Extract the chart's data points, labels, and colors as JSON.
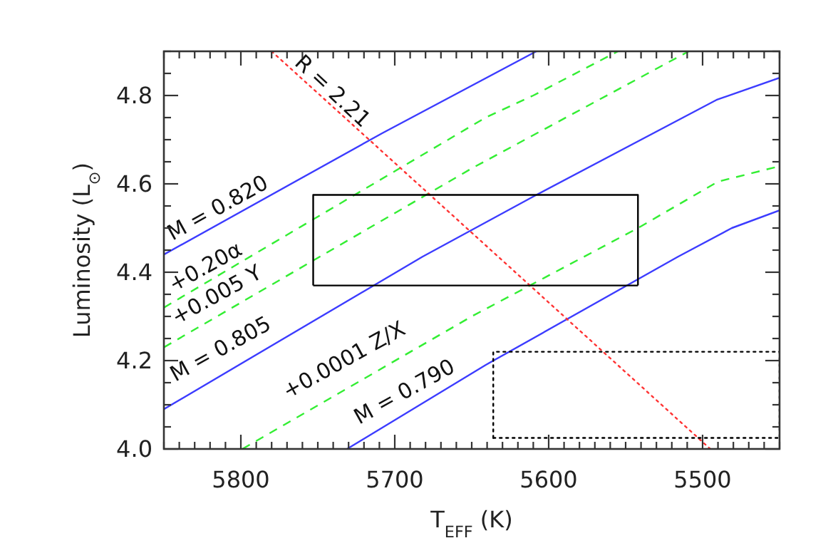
{
  "chart_data": {
    "type": "line",
    "xlabel": "T$_{EFF}$ (K)",
    "ylabel": "Luminosity (L$_{⊙}$)",
    "xlim": [
      5850,
      5450
    ],
    "ylim": [
      4.0,
      4.9
    ],
    "xticks": [
      {
        "value": 5850,
        "label": null
      },
      {
        "value": 5840,
        "label": null
      },
      {
        "value": 5830,
        "label": null
      },
      {
        "value": 5820,
        "label": null
      },
      {
        "value": 5810,
        "label": null
      },
      5800,
      {
        "value": 5790,
        "label": null
      },
      {
        "value": 5780,
        "label": null
      },
      {
        "value": 5770,
        "label": null
      },
      {
        "value": 5760,
        "label": null
      },
      {
        "value": 5750,
        "label": null
      },
      {
        "value": 5740,
        "label": null
      },
      {
        "value": 5730,
        "label": null
      },
      {
        "value": 5720,
        "label": null
      },
      {
        "value": 5710,
        "label": null
      },
      5700,
      {
        "value": 5690,
        "label": null
      },
      {
        "value": 5680,
        "label": null
      },
      {
        "value": 5670,
        "label": null
      },
      {
        "value": 5660,
        "label": null
      },
      {
        "value": 5650,
        "label": null
      },
      {
        "value": 5640,
        "label": null
      },
      {
        "value": 5630,
        "label": null
      },
      {
        "value": 5620,
        "label": null
      },
      {
        "value": 5610,
        "label": null
      },
      5600,
      {
        "value": 5590,
        "label": null
      },
      {
        "value": 5580,
        "label": null
      },
      {
        "value": 5570,
        "label": null
      },
      {
        "value": 5560,
        "label": null
      },
      {
        "value": 5550,
        "label": null
      },
      {
        "value": 5540,
        "label": null
      },
      {
        "value": 5530,
        "label": null
      },
      {
        "value": 5520,
        "label": null
      },
      {
        "value": 5510,
        "label": null
      },
      5500,
      {
        "value": 5490,
        "label": null
      },
      {
        "value": 5480,
        "label": null
      },
      {
        "value": 5470,
        "label": null
      },
      {
        "value": 5460,
        "label": null
      },
      {
        "value": 5450,
        "label": null
      }
    ],
    "yticks": [
      {
        "value": 4.0,
        "label": "4.0"
      },
      {
        "value": 4.05,
        "label": null
      },
      {
        "value": 4.1,
        "label": null
      },
      {
        "value": 4.15,
        "label": null
      },
      {
        "value": 4.2,
        "label": "4.2"
      },
      {
        "value": 4.25,
        "label": null
      },
      {
        "value": 4.3,
        "label": null
      },
      {
        "value": 4.35,
        "label": null
      },
      {
        "value": 4.4,
        "label": "4.4"
      },
      {
        "value": 4.45,
        "label": null
      },
      {
        "value": 4.5,
        "label": null
      },
      {
        "value": 4.55,
        "label": null
      },
      {
        "value": 4.6,
        "label": "4.6"
      },
      {
        "value": 4.65,
        "label": null
      },
      {
        "value": 4.7,
        "label": null
      },
      {
        "value": 4.75,
        "label": null
      },
      {
        "value": 4.8,
        "label": "4.8"
      },
      {
        "value": 4.85,
        "label": null
      },
      {
        "value": 4.9,
        "label": null
      }
    ],
    "grid": false,
    "marker": "none",
    "series": [
      {
        "name": "M = 0.820",
        "color": "#3c3cff",
        "line_style": "solid",
        "x": [
          5850,
          5708,
          5608
        ],
        "values": [
          4.44,
          4.715,
          4.9
        ]
      },
      {
        "name": "M = 0.805",
        "color": "#3c3cff",
        "line_style": "solid",
        "x": [
          5850,
          5682,
          5608,
          5491,
          5450
        ],
        "values": [
          4.09,
          4.435,
          4.575,
          4.79,
          4.84
        ]
      },
      {
        "name": "M = 0.790",
        "color": "#3c3cff",
        "line_style": "solid",
        "x": [
          5731,
          5641,
          5516,
          5481,
          5450
        ],
        "values": [
          4.0,
          4.19,
          4.435,
          4.5,
          4.54
        ]
      },
      {
        "name": "+0.20α",
        "color": "#33ee33",
        "line_style": "dashed",
        "x": [
          5850,
          5641,
          5610,
          5555
        ],
        "values": [
          4.32,
          4.75,
          4.8,
          4.9
        ]
      },
      {
        "name": "+0.005 Y",
        "color": "#33ee33",
        "line_style": "dashed",
        "x": [
          5850,
          5650,
          5509
        ],
        "values": [
          4.23,
          4.635,
          4.9
        ]
      },
      {
        "name": "+0.0001 Z/X",
        "color": "#33ee33",
        "line_style": "dashed",
        "x": [
          5799,
          5650,
          5542,
          5490,
          5450
        ],
        "values": [
          4.0,
          4.3,
          4.5,
          4.605,
          4.64
        ]
      },
      {
        "name": "R = 2.21",
        "color": "#ff3333",
        "line_style": "dotted",
        "x": [
          5780,
          5495
        ],
        "values": [
          4.9,
          4.0
        ]
      },
      {
        "color": "#000000",
        "line_style": "solid",
        "x": [
          5753,
          5753,
          5542,
          5542
        ],
        "values": [
          4.37,
          4.575,
          4.575,
          4.37
        ]
      },
      {
        "color": "#000000",
        "line_style": "solid",
        "x": [
          5753,
          5542
        ],
        "values": [
          4.37,
          4.37
        ]
      },
      {
        "color": "#000000",
        "line_style": "dotted",
        "x": [
          5636,
          5636,
          5450,
          5450
        ],
        "values": [
          4.025,
          4.22,
          4.22,
          4.025
        ]
      },
      {
        "color": "#000000",
        "line_style": "dotted",
        "x": [
          5636,
          5450
        ],
        "values": [
          4.025,
          4.025
        ]
      }
    ]
  }
}
